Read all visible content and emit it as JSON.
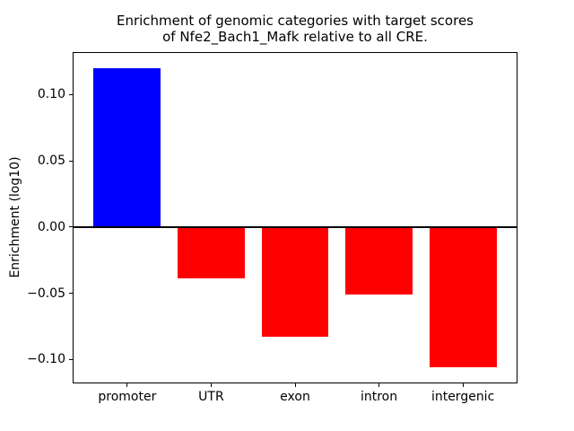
{
  "chart_data": {
    "type": "bar",
    "title": "Enrichment of genomic categories with target scores\nof Nfe2_Bach1_Mafk relative to all CRE.",
    "title_lines": [
      "Enrichment of genomic categories with target scores",
      "of Nfe2_Bach1_Mafk relative to all CRE."
    ],
    "xlabel": "",
    "ylabel": "Enrichment (log10)",
    "categories": [
      "promoter",
      "UTR",
      "exon",
      "intron",
      "intergenic"
    ],
    "values": [
      0.12,
      -0.039,
      -0.083,
      -0.051,
      -0.106
    ],
    "bar_colors": [
      "#0000ff",
      "#ff0000",
      "#ff0000",
      "#ff0000",
      "#ff0000"
    ],
    "positive_color": "#0000ff",
    "negative_color": "#ff0000",
    "ylim": [
      -0.1173,
      0.1313
    ],
    "xlim": [
      -0.64,
      4.64
    ],
    "bar_width": 0.8,
    "yticks": [
      0.1,
      0.05,
      0.0,
      -0.05,
      -0.1
    ],
    "ytick_labels": [
      "0.10",
      "0.05",
      "0.00",
      "−0.05",
      "−0.10"
    ],
    "zero_line": true,
    "zero_line_color": "#000000",
    "grid": false,
    "legend": false,
    "background_color": "#ffffff",
    "spine_color": "#000000"
  }
}
